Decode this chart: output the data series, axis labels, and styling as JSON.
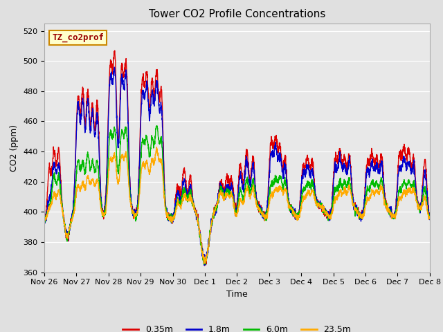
{
  "title": "Tower CO2 Profile Concentrations",
  "xlabel": "Time",
  "ylabel": "CO2 (ppm)",
  "ylim": [
    360,
    525
  ],
  "yticks": [
    360,
    380,
    400,
    420,
    440,
    460,
    480,
    500,
    520
  ],
  "background_color": "#e0e0e0",
  "plot_bg_color": "#e8e8e8",
  "legend_label": "TZ_co2prof",
  "series_labels": [
    "0.35m",
    "1.8m",
    "6.0m",
    "23.5m"
  ],
  "series_colors": [
    "#dd0000",
    "#0000cc",
    "#00bb00",
    "#ffaa00"
  ],
  "line_width": 1.0,
  "tick_labels": [
    "Nov 26",
    "Nov 27",
    "Nov 28",
    "Nov 29",
    "Nov 30",
    "Dec 1",
    "Dec 2",
    "Dec 3",
    "Dec 4",
    "Dec 5",
    "Dec 6",
    "Dec 7",
    "Dec 8"
  ],
  "tick_positions": [
    0,
    1,
    2,
    3,
    4,
    5,
    6,
    7,
    8,
    9,
    10,
    11,
    12
  ]
}
